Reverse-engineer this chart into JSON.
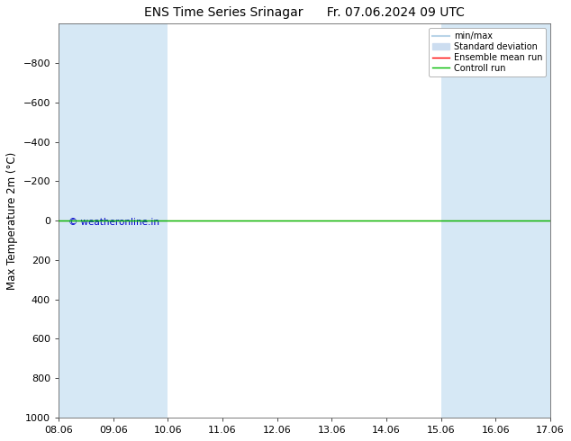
{
  "title": "ENS Time Series Srinagar      Fr. 07.06.2024 09 UTC",
  "ylabel": "Max Temperature 2m (°C)",
  "ylim_bottom": 1000,
  "ylim_top": -1000,
  "yticks": [
    -800,
    -600,
    -400,
    -200,
    0,
    200,
    400,
    600,
    800,
    1000
  ],
  "xtick_positions": [
    0,
    1,
    2,
    3,
    4,
    5,
    6,
    7,
    8,
    9
  ],
  "xtick_labels": [
    "08.06",
    "09.06",
    "10.06",
    "11.06",
    "12.06",
    "13.06",
    "14.06",
    "15.06",
    "16.06",
    "17.06"
  ],
  "shaded_bands": [
    {
      "x_start": 0,
      "x_end": 1,
      "color": "#d6e8f5"
    },
    {
      "x_start": 1,
      "x_end": 2,
      "color": "#d6e8f5"
    },
    {
      "x_start": 7,
      "x_end": 8,
      "color": "#d6e8f5"
    },
    {
      "x_start": 8,
      "x_end": 9,
      "color": "#d6e8f5"
    }
  ],
  "green_line_y": 0,
  "red_line_y": 0,
  "green_line_color": "#00bb00",
  "red_line_color": "#ff0000",
  "minmax_color": "#b8d4e8",
  "std_color": "#ccddf0",
  "copyright_text": "© weatheronline.in",
  "copyright_color": "#0000cc",
  "bg_color": "#ffffff",
  "legend_entries": [
    "min/max",
    "Standard deviation",
    "Ensemble mean run",
    "Controll run"
  ],
  "legend_line_colors": [
    "#b8d4e8",
    "#ccddf0",
    "#ff0000",
    "#00bb00"
  ],
  "title_fontsize": 10,
  "tick_fontsize": 8,
  "ylabel_fontsize": 8.5
}
